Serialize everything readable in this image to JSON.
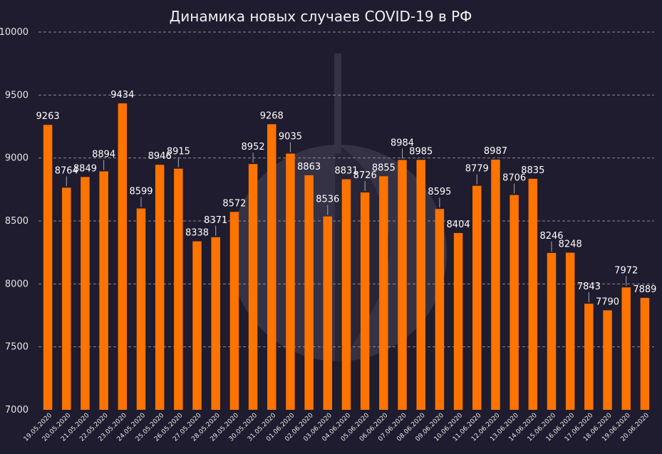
{
  "chart_data": {
    "type": "bar",
    "title": "Динамика новых случаев COVID-19 в РФ",
    "xlabel": "",
    "ylabel": "",
    "ylim": [
      7000,
      10000
    ],
    "yticks": [
      7000,
      7500,
      8000,
      8500,
      9000,
      9500,
      10000
    ],
    "grid": true,
    "bar_color": "#ff7300",
    "background": "#1e1c2e",
    "categories": [
      "19.05.2020",
      "20.05.2020",
      "21.05.2020",
      "22.05.2020",
      "23.05.2020",
      "24.05.2020",
      "25.05.2020",
      "26.05.2020",
      "27.05.2020",
      "28.05.2020",
      "29.05.2020",
      "30.05.2020",
      "31.05.2020",
      "01.06.2020",
      "02.06.2020",
      "03.06.2020",
      "04.06.2020",
      "05.06.2020",
      "06.06.2020",
      "07.06.2020",
      "08.06.2020",
      "09.06.2020",
      "10.06.2020",
      "11.06.2020",
      "12.06.2020",
      "13.06.2020",
      "14.06.2020",
      "15.06.2020",
      "16.06.2020",
      "17.06.2020",
      "18.06.2020",
      "19.06.2020",
      "20.06.2020"
    ],
    "values": [
      9263,
      8764,
      8849,
      8894,
      9434,
      8599,
      8946,
      8915,
      8338,
      8371,
      8572,
      8952,
      9268,
      9035,
      8863,
      8536,
      8831,
      8726,
      8855,
      8984,
      8985,
      8595,
      8404,
      8779,
      8987,
      8706,
      8835,
      8246,
      8248,
      7843,
      7790,
      7972,
      7889
    ]
  }
}
